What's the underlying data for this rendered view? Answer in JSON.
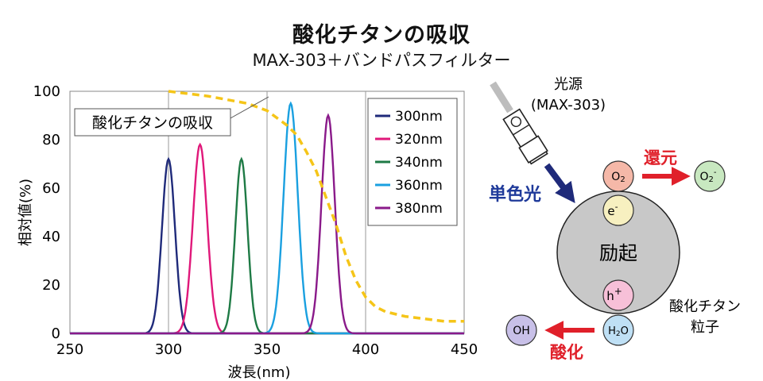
{
  "title": "酸化チタンの吸収",
  "subtitle": "MAX-303＋バンドパスフィルター",
  "chart_data": {
    "type": "line",
    "xlabel": "波長(nm)",
    "ylabel": "相対値(%)",
    "xlim": [
      250,
      450
    ],
    "ylim": [
      0,
      100
    ],
    "xticks": [
      "250",
      "300",
      "350",
      "400",
      "450"
    ],
    "yticks": [
      "0",
      "20",
      "40",
      "60",
      "80",
      "100"
    ],
    "grid": "vertical",
    "legend_position": "top-right",
    "annotation": "酸化チタンの吸収",
    "absorption": {
      "name": "酸化チタンの吸収",
      "color": "#F5C518",
      "style": "dashed",
      "x": [
        300,
        320,
        340,
        350,
        360,
        365,
        370,
        375,
        380,
        385,
        390,
        395,
        400,
        405,
        410,
        420,
        430,
        440,
        450
      ],
      "y": [
        100,
        98,
        95,
        92,
        86,
        82,
        75,
        67,
        56,
        45,
        32,
        22,
        15,
        11,
        9,
        7,
        6,
        5,
        5
      ]
    },
    "series": [
      {
        "name": "300nm",
        "color": "#1F2A7A",
        "peak": 300,
        "value": 72,
        "sigma": 3.3
      },
      {
        "name": "320nm",
        "color": "#E0187A",
        "peak": 316,
        "value": 78,
        "sigma": 3.6
      },
      {
        "name": "340nm",
        "color": "#1E7A45",
        "peak": 337,
        "value": 72,
        "sigma": 3.1
      },
      {
        "name": "360nm",
        "color": "#1AA0E0",
        "peak": 362,
        "value": 95,
        "sigma": 3.6
      },
      {
        "name": "380nm",
        "color": "#8A1A8A",
        "peak": 381,
        "value": 90,
        "sigma": 3.4
      }
    ]
  },
  "diagram": {
    "light_source_label": "光源",
    "light_source_model": "(MAX-303)",
    "monochromatic_label": "単色光",
    "particle_label": "励起",
    "particle_name_line1": "酸化チタン",
    "particle_name_line2": "粒子",
    "electron": "e-",
    "hole": "h+",
    "oxygen": "O2",
    "superoxide": "O2-",
    "water": "H2O",
    "hydroxyl": "OH",
    "reduction_label": "還元",
    "oxidation_label": "酸化",
    "colors": {
      "accent_red": "#E0202A",
      "light_arrow": "#1F2A7A",
      "label_blue": "#1F3A9A",
      "particle": "#C8C8C8",
      "oxygen": "#F5B8A8",
      "electron": "#F7F0C0",
      "hole": "#F7C0D8",
      "water": "#BFE0F5",
      "superoxide": "#C8E8C0",
      "hydroxyl": "#C8C0E8"
    }
  }
}
